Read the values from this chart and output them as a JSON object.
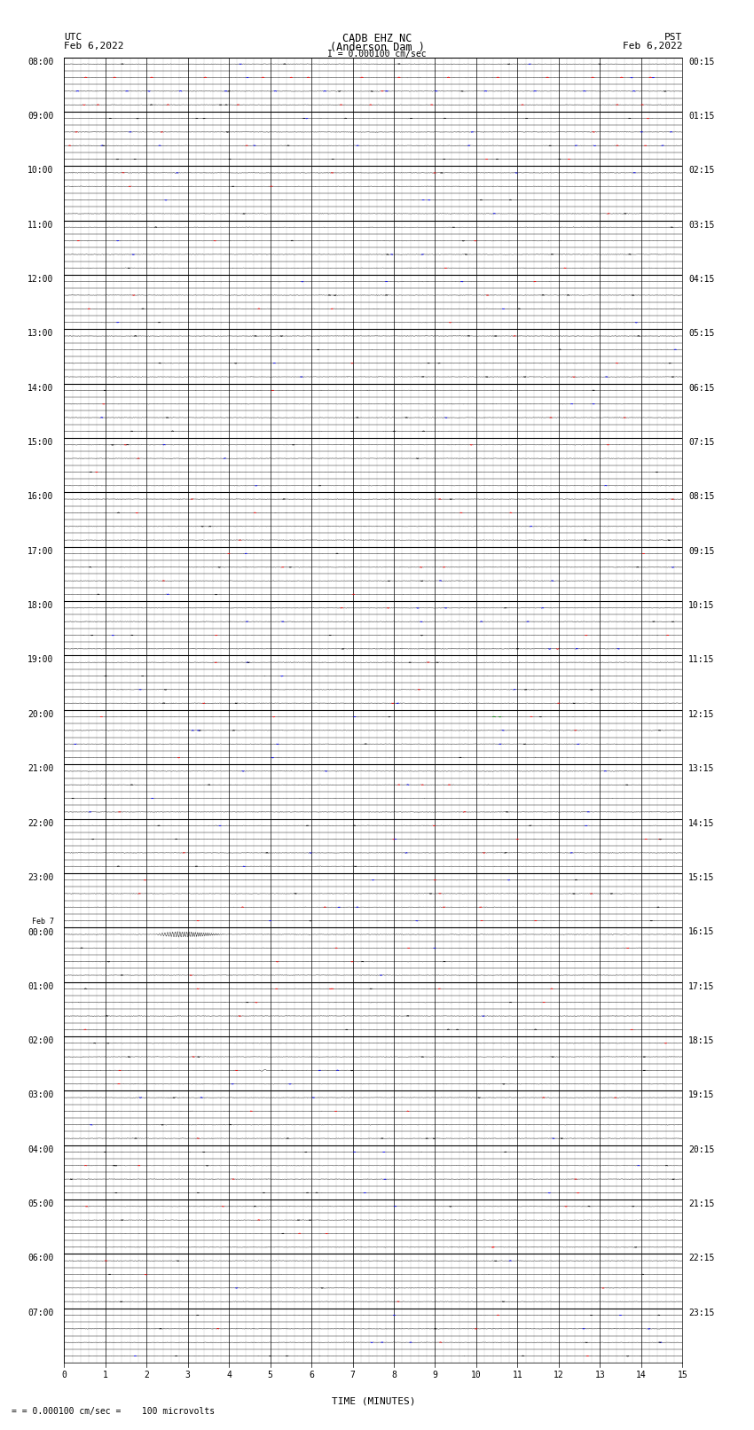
{
  "title_line1": "CADB EHZ NC",
  "title_line2": "(Anderson Dam )",
  "title_line3": "I = 0.000100 cm/sec",
  "left_header_line1": "UTC",
  "left_header_line2": "Feb 6,2022",
  "right_header_line1": "PST",
  "right_header_line2": "Feb 6,2022",
  "footer_text": "= 0.000100 cm/sec =    100 microvolts",
  "xlabel": "TIME (MINUTES)",
  "num_rows": 24,
  "x_min": 0,
  "x_max": 15,
  "background_color": "#ffffff",
  "left_labels_utc": [
    "08:00",
    "09:00",
    "10:00",
    "11:00",
    "12:00",
    "13:00",
    "14:00",
    "15:00",
    "16:00",
    "17:00",
    "18:00",
    "19:00",
    "20:00",
    "21:00",
    "22:00",
    "23:00",
    "Feb 7\n00:00",
    "01:00",
    "02:00",
    "03:00",
    "04:00",
    "05:00",
    "06:00",
    "07:00"
  ],
  "right_labels_pst": [
    "00:15",
    "01:15",
    "02:15",
    "03:15",
    "04:15",
    "05:15",
    "06:15",
    "07:15",
    "08:15",
    "09:15",
    "10:15",
    "11:15",
    "12:15",
    "13:15",
    "14:15",
    "15:15",
    "16:15",
    "17:15",
    "18:15",
    "19:15",
    "20:15",
    "21:15",
    "22:15",
    "23:15"
  ],
  "earthquake_row": 16,
  "earthquake_subrow": 0,
  "earthquake_minute": 2.2,
  "earthquake_amplitude": 0.38,
  "earthquake_duration_minutes": 1.8,
  "green_event_row": 18,
  "green_event_subrow": 2,
  "green_event_minute": 4.7,
  "fig_width": 8.5,
  "fig_height": 16.13,
  "dpi": 100
}
